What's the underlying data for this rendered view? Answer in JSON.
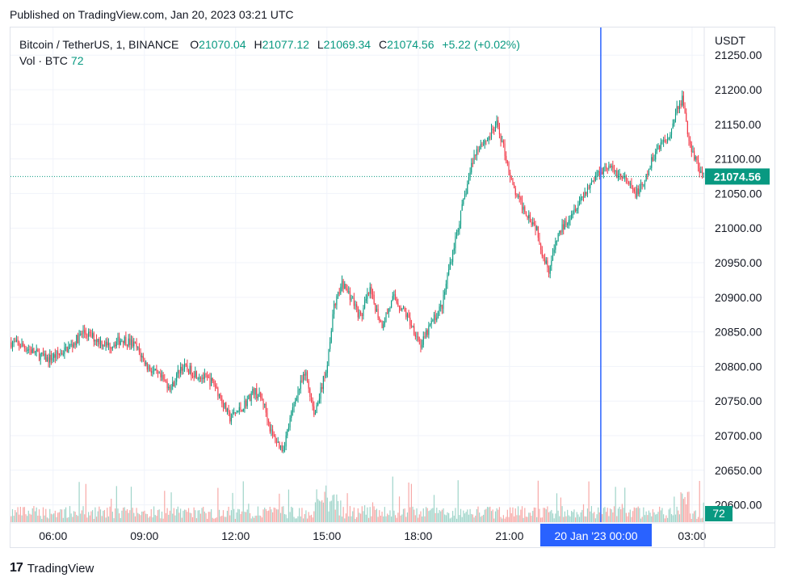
{
  "published": "Published on TradingView.com, Jan 20, 2023 03:21 UTC",
  "legend": {
    "symbol": "Bitcoin / TetherUS, 1, BINANCE",
    "open_label": "O",
    "open": "21070.04",
    "high_label": "H",
    "high": "21077.12",
    "low_label": "L",
    "low": "21069.34",
    "close_label": "C",
    "close": "21074.56",
    "change": "+5.22 (+0.02%)",
    "volume_label": "Vol · BTC",
    "volume": "72"
  },
  "footer": {
    "logo_mark": "17",
    "logo_text": "TradingView"
  },
  "colors": {
    "up": "#089981",
    "down": "#f23645",
    "up_vol": "#9fd4c9",
    "down_vol": "#f7a9a7",
    "crosshair": "#2962ff",
    "last_price_bg": "#089981"
  },
  "chart_data": {
    "type": "candlestick",
    "currency_label": "USDT",
    "y_ticks": [
      "21250.00",
      "21200.00",
      "21150.00",
      "21100.00",
      "21050.00",
      "21000.00",
      "20950.00",
      "20900.00",
      "20850.00",
      "20800.00",
      "20750.00",
      "20700.00",
      "20650.00",
      "20600.00"
    ],
    "ylim": [
      20575,
      21290
    ],
    "x_ticks": [
      "06:00",
      "09:00",
      "12:00",
      "15:00",
      "18:00",
      "21:00",
      "03:00"
    ],
    "x_range_hours": [
      4.6,
      27.4
    ],
    "crosshair_label": "20 Jan '23   00:00",
    "crosshair_time_hours": 24.0,
    "last_price_label": "21074.56",
    "last_price": 21074.56,
    "volume_badge": "72",
    "price_path": [
      [
        4.6,
        20835
      ],
      [
        5.0,
        20830
      ],
      [
        5.4,
        20820
      ],
      [
        5.8,
        20810
      ],
      [
        6.2,
        20818
      ],
      [
        6.6,
        20830
      ],
      [
        7.0,
        20850
      ],
      [
        7.4,
        20840
      ],
      [
        7.8,
        20830
      ],
      [
        8.3,
        20840
      ],
      [
        8.7,
        20830
      ],
      [
        9.1,
        20800
      ],
      [
        9.6,
        20780
      ],
      [
        9.9,
        20770
      ],
      [
        10.2,
        20800
      ],
      [
        10.7,
        20790
      ],
      [
        11.3,
        20775
      ],
      [
        11.8,
        20725
      ],
      [
        12.2,
        20740
      ],
      [
        12.6,
        20765
      ],
      [
        12.9,
        20750
      ],
      [
        13.2,
        20700
      ],
      [
        13.55,
        20680
      ],
      [
        14.0,
        20760
      ],
      [
        14.3,
        20790
      ],
      [
        14.6,
        20730
      ],
      [
        15.0,
        20800
      ],
      [
        15.2,
        20880
      ],
      [
        15.5,
        20920
      ],
      [
        15.8,
        20900
      ],
      [
        16.1,
        20870
      ],
      [
        16.4,
        20910
      ],
      [
        16.8,
        20860
      ],
      [
        17.2,
        20900
      ],
      [
        17.6,
        20875
      ],
      [
        17.9,
        20850
      ],
      [
        18.1,
        20830
      ],
      [
        18.4,
        20860
      ],
      [
        18.8,
        20890
      ],
      [
        19.0,
        20940
      ],
      [
        19.3,
        21000
      ],
      [
        19.6,
        21060
      ],
      [
        19.8,
        21100
      ],
      [
        20.0,
        21120
      ],
      [
        20.3,
        21130
      ],
      [
        20.6,
        21150
      ],
      [
        20.9,
        21100
      ],
      [
        21.1,
        21060
      ],
      [
        21.3,
        21040
      ],
      [
        21.6,
        21020
      ],
      [
        21.9,
        21000
      ],
      [
        22.1,
        20960
      ],
      [
        22.3,
        20940
      ],
      [
        22.6,
        20990
      ],
      [
        23.0,
        21020
      ],
      [
        23.3,
        21040
      ],
      [
        23.6,
        21060
      ],
      [
        23.9,
        21080
      ],
      [
        24.2,
        21090
      ],
      [
        24.5,
        21080
      ],
      [
        24.8,
        21070
      ],
      [
        25.1,
        21050
      ],
      [
        25.4,
        21060
      ],
      [
        25.7,
        21100
      ],
      [
        25.9,
        21120
      ],
      [
        26.2,
        21130
      ],
      [
        26.5,
        21170
      ],
      [
        26.7,
        21190
      ],
      [
        26.9,
        21120
      ],
      [
        27.1,
        21100
      ],
      [
        27.3,
        21075
      ]
    ]
  }
}
